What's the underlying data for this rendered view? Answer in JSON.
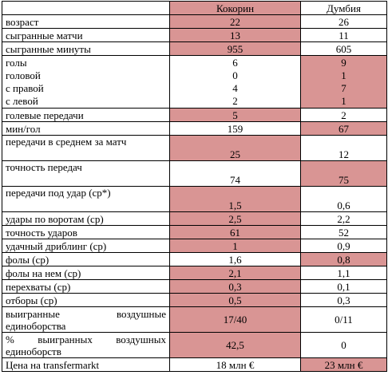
{
  "header": {
    "player1": "Кокорин",
    "player2": "Думбия"
  },
  "colors": {
    "highlight": "#d99594"
  },
  "rows": [
    {
      "label": "возраст",
      "v1": "22",
      "v2": "26",
      "hl": "1"
    },
    {
      "label": "сыгранные матчи",
      "v1": "13",
      "v2": "11",
      "hl": "1"
    },
    {
      "label": "сыгранные минуты",
      "v1": "955",
      "v2": "605",
      "hl": "1"
    },
    {
      "labels": [
        "голы",
        "головой",
        "с правой",
        "с левой"
      ],
      "v1": [
        "6",
        "0",
        "4",
        "2"
      ],
      "v2": [
        "9",
        "1",
        "7",
        "1"
      ],
      "hl": "2"
    },
    {
      "label": "голевые передачи",
      "v1": "5",
      "v2": "2",
      "hl": "1"
    },
    {
      "label": "мин/гол",
      "v1": "159",
      "v2": "67",
      "hl": "2"
    },
    {
      "label": "передачи в среднем за матч",
      "v1": "25",
      "v2": "12",
      "hl": "1"
    },
    {
      "label": "точность передач",
      "v1": "74",
      "v2": "75",
      "hl": "2"
    },
    {
      "label": "передачи под удар (ср*)",
      "v1": "1,5",
      "v2": "0,6",
      "hl": "1"
    },
    {
      "label": "удары по воротам (ср)",
      "v1": "2,5",
      "v2": "2,2",
      "hl": "1"
    },
    {
      "label": "точность ударов",
      "v1": "61",
      "v2": "52",
      "hl": "1"
    },
    {
      "label": "удачный дриблинг (ср)",
      "v1": "1",
      "v2": "0,9",
      "hl": "1"
    },
    {
      "label": "фолы (ср)",
      "v1": "1,6",
      "v2": "0,8",
      "hl": "2"
    },
    {
      "label": "фолы на нем (ср)",
      "v1": "2,1",
      "v2": "1,1",
      "hl": "1"
    },
    {
      "label": "перехваты (ср)",
      "v1": "0,3",
      "v2": "0,1",
      "hl": "1"
    },
    {
      "label": "отборы (ср)",
      "v1": "0,5",
      "v2": "0,3",
      "hl": "1"
    },
    {
      "label": "выигранные воздушные единоборства",
      "v1": "17/40",
      "v2": "0/11",
      "hl": "1"
    },
    {
      "label": "% выигранных воздушных единоборств",
      "v1": "42,5",
      "v2": "0",
      "hl": "1"
    },
    {
      "label": "Цена на transfermarkt",
      "v1": "18 млн €",
      "v2": "23 млн €",
      "hl": "2"
    }
  ]
}
